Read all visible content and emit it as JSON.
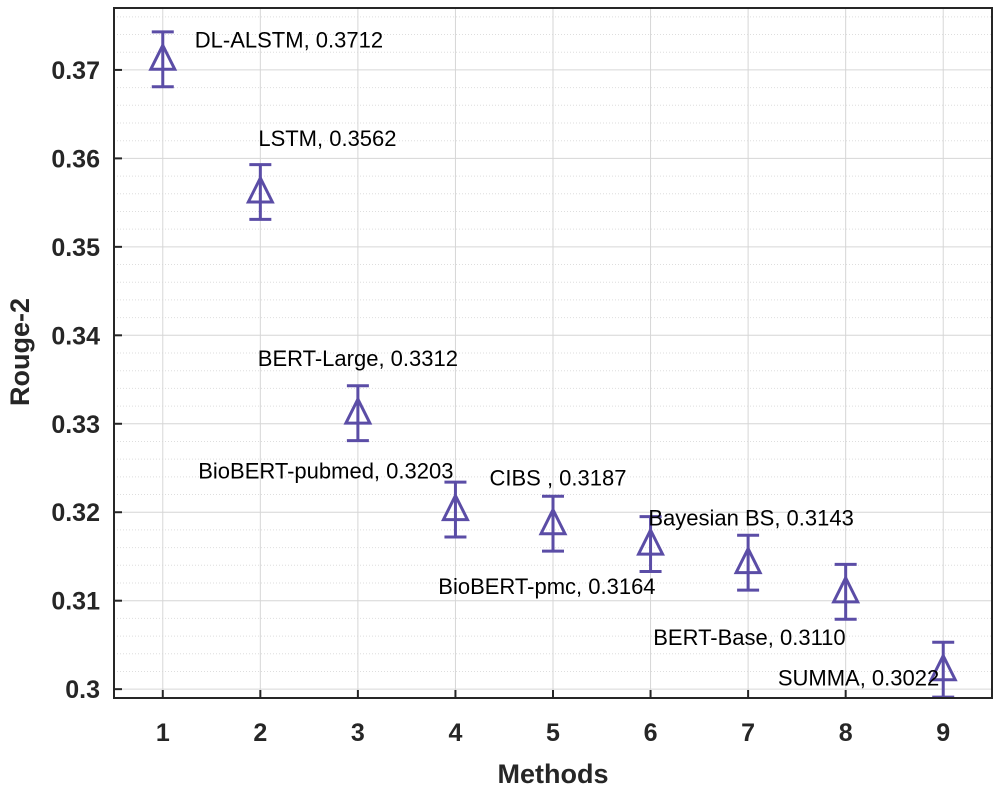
{
  "chart_data": {
    "type": "scatter",
    "title": "",
    "xlabel": "Methods",
    "ylabel": "Rouge-2",
    "xlim": [
      0.5,
      9.5
    ],
    "ylim": [
      0.299,
      0.377
    ],
    "grid": true,
    "marker": "triangle-up",
    "color": "#5B4DA6",
    "x": [
      1,
      2,
      3,
      4,
      5,
      6,
      7,
      8,
      9
    ],
    "y": [
      0.3712,
      0.3562,
      0.3312,
      0.3203,
      0.3187,
      0.3164,
      0.3143,
      0.311,
      0.3022
    ],
    "error": [
      0.0031,
      0.0031,
      0.0031,
      0.0031,
      0.0031,
      0.0031,
      0.0031,
      0.0031,
      0.0031
    ],
    "xticks": [
      "1",
      "2",
      "3",
      "4",
      "5",
      "6",
      "7",
      "8",
      "9"
    ],
    "yticks": [
      0.3,
      0.31,
      0.32,
      0.33,
      0.34,
      0.35,
      0.36,
      0.37
    ],
    "ytick_labels": [
      "0.3",
      "0.31",
      "0.32",
      "0.33",
      "0.34",
      "0.35",
      "0.36",
      "0.37"
    ],
    "labels": [
      "DL-ALSTM, 0.3712",
      "LSTM, 0.3562",
      "BERT-Large, 0.3312",
      "BioBERT-pubmed, 0.3203",
      "CIBS , 0.3187",
      "BioBERT-pmc, 0.3164",
      "Bayesian BS, 0.3143",
      "BERT-Base, 0.3110",
      "SUMMA, 0.3022"
    ]
  }
}
